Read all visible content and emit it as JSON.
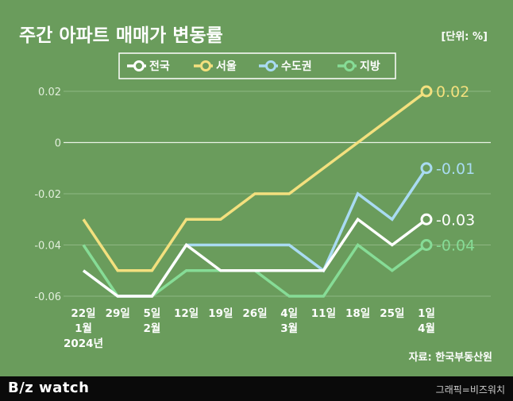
{
  "title": "주간 아파트 매매가 변동률",
  "unit": "[단위: %]",
  "source": "자료: 한국부동산원",
  "brand": "B/z watch",
  "credit": "그래픽=비즈워치",
  "chart_data": {
    "type": "line",
    "title": "주간 아파트 매매가 변동률",
    "ylim": [
      -0.06,
      0.02
    ],
    "yticks": [
      0.02,
      0,
      -0.02,
      -0.04,
      -0.06
    ],
    "ytick_labels": [
      "0.02",
      "0",
      "-0.02",
      "-0.04",
      "-0.06"
    ],
    "x_labels": [
      [
        "22일",
        "1월",
        "2024년"
      ],
      [
        "29일"
      ],
      [
        "5일",
        "2월"
      ],
      [
        "12일"
      ],
      [
        "19일"
      ],
      [
        "26일"
      ],
      [
        "4일",
        "3월"
      ],
      [
        "11일"
      ],
      [
        "18일"
      ],
      [
        "25일"
      ],
      [
        "1일",
        "4월"
      ]
    ],
    "legend_position": "top",
    "grid": "horizontal",
    "series": [
      {
        "name": "전국",
        "color": "#ffffff",
        "values": [
          -0.05,
          -0.06,
          -0.06,
          -0.04,
          -0.05,
          -0.05,
          -0.05,
          -0.05,
          -0.03,
          -0.04,
          -0.03
        ],
        "end_label": "-0.03"
      },
      {
        "name": "서울",
        "color": "#f3e07e",
        "values": [
          -0.03,
          -0.05,
          -0.05,
          -0.03,
          -0.03,
          -0.02,
          -0.02,
          -0.01,
          0.0,
          0.01,
          0.02
        ],
        "end_label": "0.02"
      },
      {
        "name": "수도권",
        "color": "#a9dbf2",
        "values": [
          -0.05,
          -0.06,
          -0.06,
          -0.04,
          -0.04,
          -0.04,
          -0.04,
          -0.05,
          -0.02,
          -0.03,
          -0.01
        ],
        "end_label": "-0.01"
      },
      {
        "name": "지방",
        "color": "#86dc96",
        "values": [
          -0.04,
          -0.06,
          -0.06,
          -0.05,
          -0.05,
          -0.05,
          -0.06,
          -0.06,
          -0.04,
          -0.05,
          -0.04
        ],
        "end_label": "-0.04"
      }
    ]
  }
}
